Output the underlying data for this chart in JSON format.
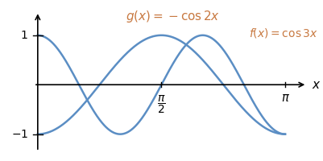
{
  "x_label": "x",
  "xlim": [
    -0.15,
    3.55
  ],
  "ylim": [
    -1.38,
    1.55
  ],
  "x_ticks": [
    1.5707963267948966,
    3.141592653589793
  ],
  "x_tick_labels_pi2": "$\\frac{\\pi}{2}$",
  "x_tick_label_pi": "$\\pi$",
  "y_ticks": [
    -1,
    1
  ],
  "y_tick_labels": [
    "$-1$",
    "$1$"
  ],
  "curve_color": "#5b8ec4",
  "curve_linewidth": 1.8,
  "label_g": "$g(x) = -\\cos 2x$",
  "label_f": "$f(x) = \\cos 3x$",
  "label_color": "#c87941",
  "label_fontsize_g": 11,
  "label_fontsize_f": 10,
  "background_color": "#ffffff",
  "pi": 3.141592653589793,
  "axis_linewidth": 1.2,
  "tick_linewidth": 1.0
}
